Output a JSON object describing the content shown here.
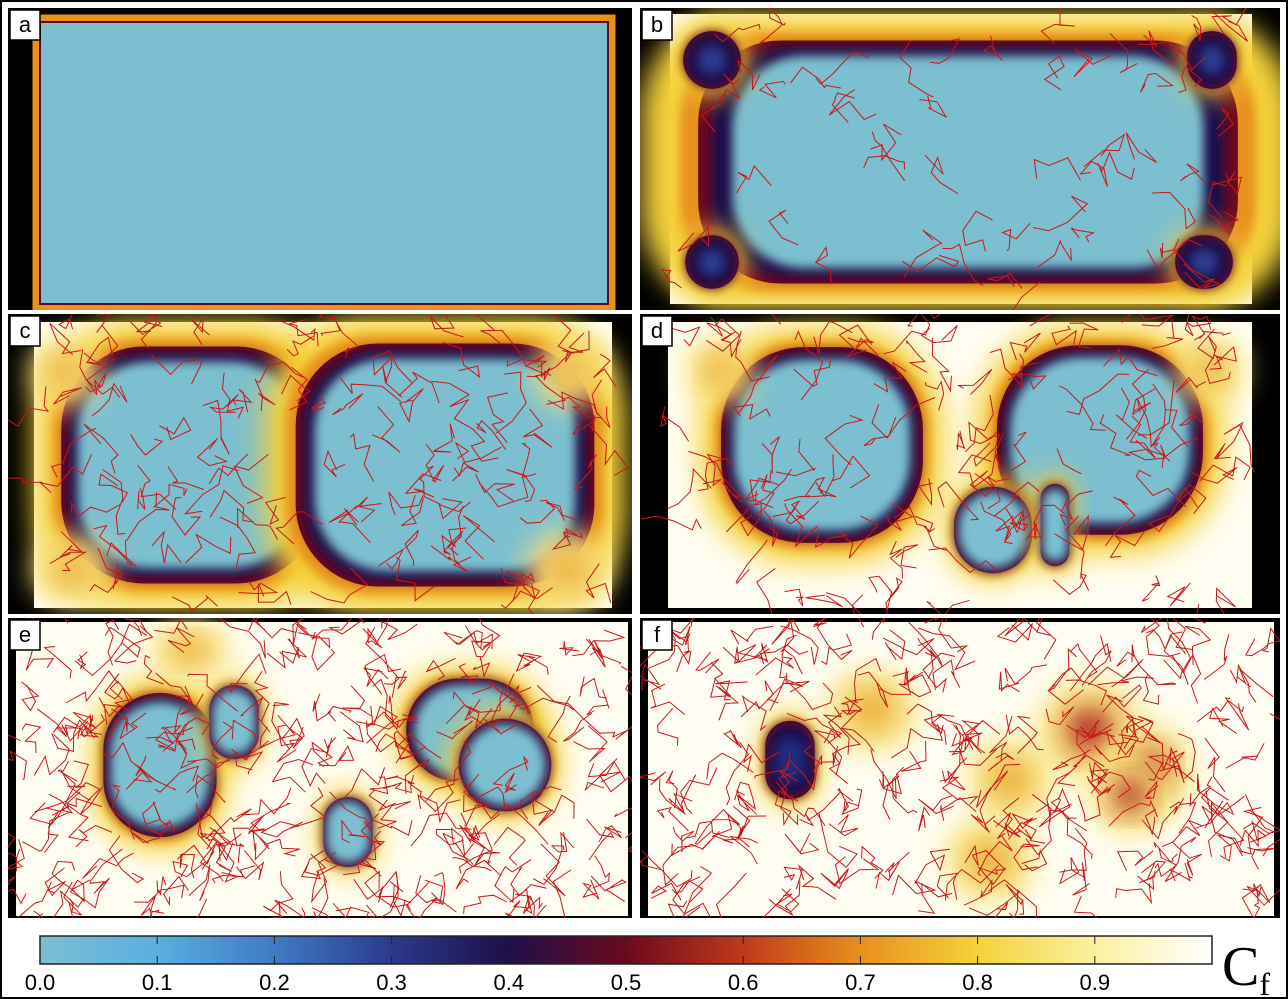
{
  "panels": [
    {
      "label": "a"
    },
    {
      "label": "b"
    },
    {
      "label": "c"
    },
    {
      "label": "d"
    },
    {
      "label": "e"
    },
    {
      "label": "f"
    }
  ],
  "colorbar": {
    "title": "C",
    "subscript": "f",
    "lim": [
      0,
      1
    ],
    "ticks": [
      {
        "value": 0,
        "label": "0.0"
      },
      0.1,
      0.2,
      0.3,
      0.4,
      0.5,
      0.6,
      0.7,
      0.8,
      0.9
    ]
  }
}
